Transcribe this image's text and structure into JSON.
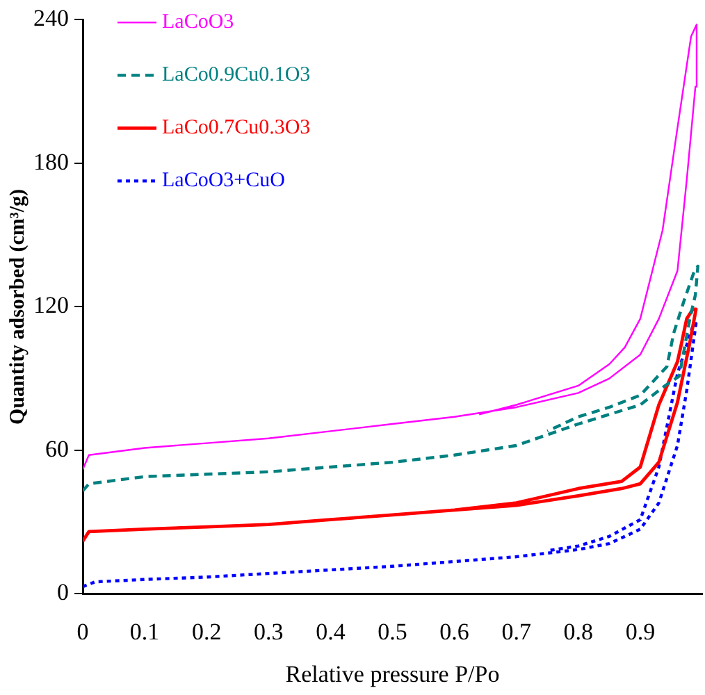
{
  "chart_data": {
    "type": "line",
    "xlabel": "Relative pressure P/Po",
    "ylabel": "Quantity adsorbed (cm³/g)",
    "xlim": [
      0,
      1
    ],
    "xticks": [
      0,
      0.1,
      0.2,
      0.3,
      0.4,
      0.5,
      0.6,
      0.7,
      0.8,
      0.9
    ],
    "ylim": [
      0,
      240
    ],
    "yticks": [
      0,
      60,
      120,
      180,
      240
    ],
    "grid": false,
    "legend": "top left",
    "marker": "none",
    "series": [
      {
        "name": "LaCoO3",
        "color": "#ff00ff",
        "line_style": "solid",
        "x": [
          0,
          0.01,
          0.1,
          0.2,
          0.3,
          0.4,
          0.5,
          0.6,
          0.7,
          0.8,
          0.85,
          0.9,
          0.93,
          0.96,
          0.975,
          0.989,
          0.991,
          0.982,
          0.959,
          0.936,
          0.9,
          0.875,
          0.85,
          0.8,
          0.7,
          0.64
        ],
        "values": [
          52,
          58,
          61,
          63,
          65,
          68,
          71,
          74,
          78,
          84,
          90,
          100,
          115,
          135,
          173,
          212,
          238,
          233,
          193,
          152,
          115,
          103,
          96,
          87,
          79,
          75
        ]
      },
      {
        "name": "LaCo0.9Cu0.1O3",
        "color": "#008080",
        "line_style": "dashed",
        "x": [
          0,
          0.01,
          0.1,
          0.2,
          0.3,
          0.4,
          0.5,
          0.6,
          0.7,
          0.8,
          0.85,
          0.9,
          0.94,
          0.963,
          0.98,
          0.989,
          0.993,
          0.986,
          0.97,
          0.954,
          0.943,
          0.9,
          0.85,
          0.8,
          0.75
        ],
        "values": [
          43,
          46,
          49,
          50,
          51,
          53,
          55,
          58,
          62,
          71,
          75,
          79,
          87,
          91,
          115,
          125,
          137,
          134,
          122,
          109,
          95,
          83,
          78,
          74,
          68
        ]
      },
      {
        "name": "LaCo0.7Cu0.3O3",
        "color": "#ff0000",
        "line_style": "solid",
        "x": [
          0,
          0.01,
          0.1,
          0.2,
          0.3,
          0.4,
          0.5,
          0.6,
          0.7,
          0.8,
          0.87,
          0.9,
          0.93,
          0.96,
          0.98,
          0.99,
          0.985,
          0.975,
          0.966,
          0.96,
          0.93,
          0.9,
          0.87,
          0.8,
          0.7,
          0.6
        ],
        "values": [
          22,
          26,
          27,
          28,
          29,
          31,
          33,
          35,
          37,
          41,
          44,
          46,
          55,
          80,
          105,
          119,
          119,
          115,
          104,
          97,
          79,
          53,
          47,
          44,
          38,
          35
        ]
      },
      {
        "name": "LaCoO3+CuO",
        "color": "#0000ff",
        "line_style": "dotted",
        "x": [
          0,
          0.02,
          0.1,
          0.2,
          0.3,
          0.4,
          0.5,
          0.6,
          0.7,
          0.8,
          0.85,
          0.9,
          0.93,
          0.96,
          0.975,
          0.99,
          0.985,
          0.97,
          0.96,
          0.93,
          0.9,
          0.85,
          0.8,
          0.75
        ],
        "values": [
          3,
          5,
          6,
          7,
          8.5,
          10,
          11.5,
          13.5,
          15.5,
          18.5,
          21,
          27,
          38,
          62,
          85,
          113,
          112,
          100,
          92,
          53,
          31,
          24,
          20,
          18
        ]
      }
    ]
  }
}
